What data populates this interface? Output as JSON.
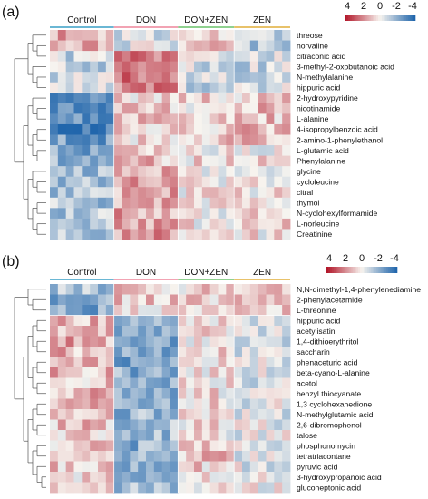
{
  "chart_data": [
    {
      "type": "heatmap",
      "panel_label": "(a)",
      "groups": [
        "Control",
        "DON",
        "DON+ZEN",
        "ZEN"
      ],
      "samples_per_group": [
        8,
        8,
        7,
        7
      ],
      "group_colors": [
        "#6ab7d4",
        "#f2a3b3",
        "#8fd18f",
        "#e8c26a"
      ],
      "rows": [
        "threose",
        "norvaline",
        "citraconic acid",
        "3-methyl-2-oxobutanoic acid",
        "N-methylalanine",
        "hippuric acid",
        "2-hydroxypyridine",
        "nicotinamide",
        "L-alanine",
        "4-isopropylbenzoic acid",
        "2-amino-1-phenylethanol",
        "L-glutamic acid",
        "Phenylalanine",
        "glycine",
        "cycloleucine",
        "citral",
        "thymol",
        "N-cyclohexylformamide",
        "L-norleucine",
        "Creatinine"
      ],
      "row_group_means": [
        [
          0.9,
          -0.3,
          0.4,
          -1.0
        ],
        [
          0.8,
          -0.3,
          0.5,
          -1.0
        ],
        [
          -0.6,
          1.6,
          -0.4,
          -0.5
        ],
        [
          -0.7,
          1.9,
          -0.5,
          -0.6
        ],
        [
          -0.5,
          1.7,
          -0.5,
          -0.5
        ],
        [
          -0.6,
          1.5,
          -0.6,
          -0.3
        ],
        [
          -1.8,
          0.5,
          0.5,
          0.6
        ],
        [
          -1.9,
          0.6,
          0.4,
          0.7
        ],
        [
          -2.0,
          0.6,
          0.5,
          0.7
        ],
        [
          -2.4,
          0.6,
          0.6,
          0.8
        ],
        [
          -1.8,
          0.5,
          0.6,
          0.6
        ],
        [
          -1.6,
          0.4,
          0.2,
          0.1
        ],
        [
          -1.4,
          0.7,
          0.3,
          0.2
        ],
        [
          -1.2,
          0.9,
          0.1,
          0.1
        ],
        [
          -1.2,
          1.0,
          0.1,
          0.0
        ],
        [
          -1.0,
          1.1,
          0.1,
          0.1
        ],
        [
          -1.0,
          1.2,
          0.1,
          0.2
        ],
        [
          -1.0,
          1.1,
          0.1,
          0.3
        ],
        [
          -1.1,
          1.2,
          0.2,
          0.3
        ],
        [
          -1.0,
          1.2,
          0.3,
          0.2
        ]
      ],
      "color_scale": {
        "ticks": [
          "4",
          "2",
          "0",
          "-2",
          "-4"
        ],
        "high": "#b2182b",
        "mid": "#f7f4ef",
        "low": "#2166ac"
      }
    },
    {
      "type": "heatmap",
      "panel_label": "(b)",
      "groups": [
        "Control",
        "DON",
        "DON+ZEN",
        "ZEN"
      ],
      "samples_per_group": [
        8,
        8,
        7,
        7
      ],
      "group_colors": [
        "#6ab7d4",
        "#f2a3b3",
        "#8fd18f",
        "#e8c26a"
      ],
      "rows": [
        "N,N-dimethyl-1,4-phenylenediamine",
        "2-phenylacetamide",
        "L-threonine",
        "hippuric acid",
        "acetylisatin",
        "1,4-dithioerythritol",
        "saccharin",
        "phenaceturic acid",
        "beta-cyano-L-alanine",
        "acetol",
        "benzyl thiocyanate",
        "1,3 cyclohexanedione",
        "N-methylglutamic acid",
        "2,6-dibromophenol",
        "talose",
        "phosphonomycin",
        "tetratriacontane",
        "pyruvic acid",
        "3-hydroxypropanoic acid",
        "glucoheptonic acid"
      ],
      "row_group_means": [
        [
          -1.0,
          0.4,
          0.4,
          0.3
        ],
        [
          -1.6,
          0.5,
          0.4,
          0.4
        ],
        [
          -1.6,
          0.4,
          0.5,
          0.4
        ],
        [
          0.9,
          -1.4,
          0.3,
          -0.1
        ],
        [
          0.9,
          -1.5,
          0.4,
          -0.2
        ],
        [
          1.0,
          -1.5,
          0.3,
          -0.3
        ],
        [
          0.8,
          -1.6,
          0.4,
          -0.3
        ],
        [
          0.8,
          -1.6,
          0.4,
          -0.3
        ],
        [
          0.8,
          -1.5,
          0.3,
          -0.3
        ],
        [
          0.7,
          -1.5,
          0.3,
          -0.4
        ],
        [
          0.8,
          -1.4,
          0.3,
          -0.4
        ],
        [
          0.7,
          -1.4,
          0.3,
          -0.3
        ],
        [
          0.7,
          -1.3,
          0.3,
          -0.3
        ],
        [
          0.6,
          -1.2,
          0.3,
          -0.3
        ],
        [
          0.6,
          -1.2,
          0.2,
          -0.1
        ],
        [
          0.5,
          -1.5,
          0.6,
          -0.2
        ],
        [
          0.5,
          -1.6,
          0.7,
          -0.1
        ],
        [
          0.6,
          -1.3,
          0.5,
          -0.2
        ],
        [
          0.5,
          -1.3,
          0.5,
          -0.2
        ],
        [
          0.5,
          -1.2,
          0.4,
          -0.1
        ]
      ],
      "color_scale": {
        "ticks": [
          "4",
          "2",
          "0",
          "-2",
          "-4"
        ],
        "high": "#b2182b",
        "mid": "#f7f4ef",
        "low": "#2166ac"
      }
    }
  ]
}
